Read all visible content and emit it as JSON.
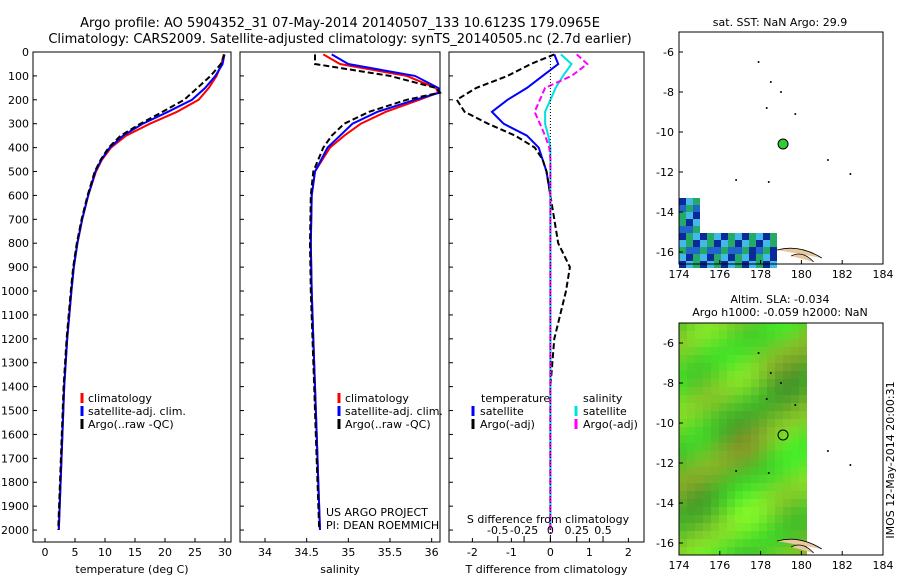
{
  "header": {
    "title_line1": "Argo profile: AO 5904352_31 07-May-2014 20140507_133 10.6123S 179.0965E",
    "title_line2": "Climatology: CARS2009. Satellite-adjusted climatology: synTS_20140505.nc (2.7d earlier)"
  },
  "colors": {
    "climatology": "#ff0000",
    "satellite": "#0000ff",
    "argo": "#000000",
    "satellite_salinity": "#00e0e0",
    "argo_salinity": "#ff00ff",
    "float_marker": "#33cc33"
  },
  "chart_data": [
    {
      "type": "line",
      "id": "temperature",
      "xlabel": "temperature (deg C)",
      "ylabel": "",
      "xlim": [
        -2,
        31
      ],
      "ylim": [
        2050,
        0
      ],
      "xticks": [
        0,
        5,
        10,
        15,
        20,
        25,
        30
      ],
      "yticks": [
        0,
        100,
        200,
        300,
        400,
        500,
        600,
        700,
        800,
        900,
        1000,
        1100,
        1200,
        1300,
        1400,
        1500,
        1600,
        1700,
        1800,
        1900,
        2000
      ],
      "depth": [
        10,
        50,
        100,
        150,
        200,
        250,
        300,
        350,
        400,
        450,
        500,
        600,
        700,
        800,
        900,
        1000,
        1200,
        1400,
        1600,
        1800,
        2000
      ],
      "series": [
        {
          "name": "climatology",
          "color_key": "climatology",
          "values": [
            29.8,
            29.4,
            28.6,
            27.3,
            25.6,
            22.0,
            17.5,
            13.5,
            11.0,
            9.5,
            8.5,
            7.2,
            6.2,
            5.4,
            4.8,
            4.4,
            3.7,
            3.2,
            2.9,
            2.6,
            2.3
          ]
        },
        {
          "name": "satellite-adj. clim.",
          "color_key": "satellite",
          "values": [
            29.9,
            29.6,
            28.4,
            26.7,
            24.5,
            20.5,
            16.3,
            13.0,
            10.8,
            9.4,
            8.4,
            7.2,
            6.2,
            5.4,
            4.8,
            4.4,
            3.7,
            3.2,
            2.9,
            2.6,
            2.3
          ]
        },
        {
          "name": "Argo(..raw -QC)",
          "color_key": "argo",
          "values": [
            29.9,
            29.3,
            27.6,
            25.4,
            23.2,
            19.6,
            15.9,
            12.6,
            10.6,
            9.3,
            8.3,
            7.1,
            6.1,
            5.3,
            4.7,
            4.3,
            3.6,
            3.1,
            2.8,
            2.5,
            2.2
          ]
        }
      ],
      "legend": [
        "climatology",
        "satellite-adj. clim.",
        "Argo(..raw -QC)"
      ]
    },
    {
      "type": "line",
      "id": "salinity",
      "xlabel": "salinity",
      "xlim": [
        33.7,
        36.1
      ],
      "ylim": [
        2050,
        0
      ],
      "xticks": [
        34,
        34.5,
        35,
        35.5,
        36
      ],
      "depth": [
        10,
        50,
        100,
        150,
        170,
        200,
        250,
        300,
        350,
        400,
        500,
        600,
        800,
        1000,
        1200,
        1400,
        1600,
        1800,
        2000
      ],
      "series": [
        {
          "name": "climatology",
          "color_key": "climatology",
          "values": [
            34.7,
            34.9,
            35.7,
            36.05,
            36.08,
            35.85,
            35.45,
            35.15,
            34.95,
            34.78,
            34.6,
            34.56,
            34.55,
            34.56,
            34.58,
            34.6,
            34.62,
            34.64,
            34.66
          ]
        },
        {
          "name": "satellite-adj. clim.",
          "color_key": "satellite",
          "values": [
            34.8,
            35.0,
            35.8,
            36.08,
            36.1,
            35.8,
            35.35,
            35.05,
            34.9,
            34.75,
            34.6,
            34.56,
            34.55,
            34.56,
            34.58,
            34.6,
            34.62,
            34.64,
            34.66
          ]
        },
        {
          "name": "Argo(..raw -QC)",
          "color_key": "argo",
          "values": [
            34.6,
            34.6,
            35.5,
            36.05,
            36.1,
            35.7,
            35.25,
            34.95,
            34.8,
            34.7,
            34.58,
            34.55,
            34.54,
            34.55,
            34.57,
            34.59,
            34.61,
            34.63,
            34.65
          ]
        }
      ],
      "legend": [
        "climatology",
        "satellite-adj. clim.",
        "Argo(..raw -QC)"
      ],
      "annotation_line1": "US ARGO PROJECT",
      "annotation_line2": "PI: DEAN ROEMMICH"
    },
    {
      "type": "line",
      "id": "difference",
      "xlabel": "T difference from climatology",
      "top_xlabel": "S difference from climatology",
      "xlim": [
        -2.6,
        2.4
      ],
      "ylim": [
        2050,
        0
      ],
      "xticks_t": [
        -2,
        -1,
        0,
        1,
        2
      ],
      "xticks_s_labels": [
        "-0.5",
        "-0.25",
        "0",
        "0.25",
        "0.5"
      ],
      "xticks_s_values": [
        -0.5,
        -0.25,
        0,
        0.25,
        0.5
      ],
      "s_scale": 2.7,
      "depth": [
        10,
        50,
        100,
        150,
        200,
        250,
        300,
        350,
        400,
        450,
        500,
        600,
        700,
        800,
        900,
        1000,
        1200,
        1400,
        1600,
        1800,
        2000
      ],
      "series": [
        {
          "name": "satellite (T)",
          "color_key": "satellite",
          "var": "T",
          "values": [
            0.1,
            0.2,
            -0.2,
            -0.6,
            -1.1,
            -1.5,
            -1.2,
            -0.6,
            -0.3,
            -0.2,
            -0.1,
            0.0,
            0.0,
            0.0,
            0.0,
            0.0,
            0.0,
            0.0,
            0.0,
            0.0,
            0.0
          ]
        },
        {
          "name": "Argo(-adj) (T)",
          "color_key": "argo",
          "var": "T",
          "values": [
            0.1,
            -0.5,
            -1.1,
            -1.9,
            -2.4,
            -2.2,
            -1.6,
            -0.9,
            -0.4,
            -0.2,
            -0.1,
            0.0,
            0.1,
            0.2,
            0.5,
            0.4,
            0.1,
            0.0,
            0.0,
            0.0,
            0.0
          ]
        },
        {
          "name": "satellite (S)",
          "color_key": "satellite_salinity",
          "var": "S",
          "values": [
            0.1,
            0.2,
            0.12,
            0.05,
            0.0,
            -0.05,
            -0.05,
            -0.02,
            0.0,
            0.0,
            0.0,
            0.0,
            0.0,
            0.0,
            0.0,
            0.0,
            0.0,
            0.0,
            0.0,
            0.0,
            0.0
          ]
        },
        {
          "name": "Argo(-adj) (S)",
          "color_key": "argo_salinity",
          "var": "S",
          "values": [
            0.25,
            0.35,
            0.2,
            -0.05,
            -0.1,
            -0.15,
            -0.1,
            -0.05,
            -0.01,
            0.0,
            0.0,
            0.0,
            0.0,
            0.0,
            0.0,
            0.0,
            0.0,
            0.0,
            0.0,
            0.0,
            0.0
          ]
        }
      ],
      "legend_temperature_title": "temperature",
      "legend_salinity_title": "salinity",
      "legend_items": [
        "satellite",
        "Argo(-adj)",
        "satellite",
        "Argo(-adj)"
      ]
    },
    {
      "type": "heatmap",
      "id": "sst_map",
      "title": "sat. SST: NaN Argo: 29.9",
      "xlim": [
        174,
        184
      ],
      "ylim": [
        -16.6,
        -5
      ],
      "xticks": [
        174,
        176,
        178,
        180,
        182,
        184
      ],
      "yticks": [
        -6,
        -8,
        -10,
        -12,
        -14,
        -16
      ],
      "float_position": [
        179.1,
        -10.6
      ]
    },
    {
      "type": "heatmap",
      "id": "sla_map",
      "title_line1": "Altim. SLA: -0.034",
      "title_line2": "Argo h1000: -0.059 h2000: NaN",
      "xlim": [
        174,
        184
      ],
      "ylim": [
        -16.6,
        -5
      ],
      "xticks": [
        174,
        176,
        178,
        180,
        182,
        184
      ],
      "yticks": [
        -6,
        -8,
        -10,
        -12,
        -14,
        -16
      ],
      "float_position": [
        179.1,
        -10.6
      ],
      "data_east_limit": 180
    }
  ],
  "footer": {
    "logo_text": "IMOS",
    "timestamp": "IMOS 12-May-2014 20:00:31"
  }
}
